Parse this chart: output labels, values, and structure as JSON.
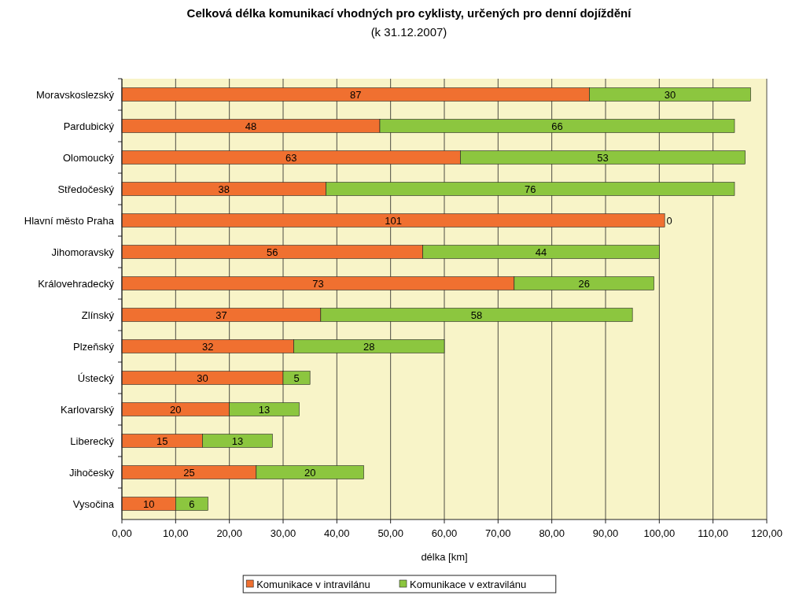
{
  "chart_data": {
    "type": "bar",
    "orientation": "horizontal",
    "stacked": true,
    "title": "Celková délka komunikací vhodných pro cyklisty, určených pro denní dojíždění",
    "subtitle": "(k 31.12.2007)",
    "xlabel": "délka [km]",
    "categories": [
      "Moravskoslezský",
      "Pardubický",
      "Olomoucký",
      "Středočeský",
      "Hlavní město Praha",
      "Jihomoravský",
      "Královehradecký",
      "Zlínský",
      "Plzeňský",
      "Ústecký",
      "Karlovarský",
      "Liberecký",
      "Jihočeský",
      "Vysočina"
    ],
    "series": [
      {
        "name": "Komunikace v intravilánu",
        "color": "#f07030",
        "values": [
          87,
          48,
          63,
          38,
          101,
          56,
          73,
          37,
          32,
          30,
          20,
          15,
          25,
          10
        ]
      },
      {
        "name": "Komunikace v extravilánu",
        "color": "#8cc63f",
        "values": [
          30,
          66,
          53,
          76,
          0,
          44,
          26,
          58,
          28,
          5,
          13,
          13,
          20,
          6
        ]
      }
    ],
    "xlim": [
      0,
      120
    ],
    "xticks": [
      {
        "value": 0,
        "label": "0,00"
      },
      {
        "value": 10,
        "label": "10,00"
      },
      {
        "value": 20,
        "label": "20,00"
      },
      {
        "value": 30,
        "label": "30,00"
      },
      {
        "value": 40,
        "label": "40,00"
      },
      {
        "value": 50,
        "label": "50,00"
      },
      {
        "value": 60,
        "label": "60,00"
      },
      {
        "value": 70,
        "label": "70,00"
      },
      {
        "value": 80,
        "label": "80,00"
      },
      {
        "value": 90,
        "label": "90,00"
      },
      {
        "value": 100,
        "label": "100,00"
      },
      {
        "value": 110,
        "label": "110,00"
      },
      {
        "value": 120,
        "label": "120,00"
      }
    ],
    "grid": "x",
    "data_labels": true,
    "legend": "bottom"
  }
}
